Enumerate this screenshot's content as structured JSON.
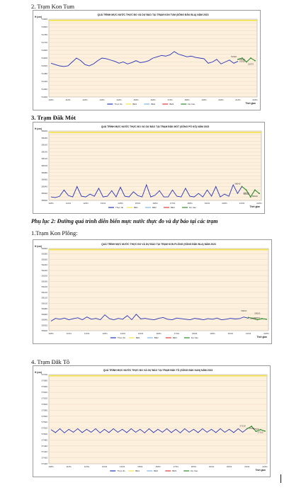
{
  "headings": {
    "kon_tum": "2. Trạm Kon Tum",
    "dak_mot": "3. Trạm Đăk Mót",
    "kon_plong": "1.Trạm Kon Plông:",
    "dak_to": "4. Trạm Đắk Tô"
  },
  "caption": "Phụ lục 2: Đường quá trình diễn biến mực nước thực đo và dự báo tại các trạm",
  "legend": {
    "observed": "Thực đo",
    "bd1": "BĐ1",
    "bd2": "BĐ2",
    "bd3": "BĐ3",
    "forecast": "Dự báo"
  },
  "colors": {
    "plot_bg": "#fdf0dd",
    "observed": "#2633b8",
    "forecast": "#2e8b2e",
    "bd1": "#f2e24a",
    "bd2": "#7fb6e6",
    "bd3": "#e03a3a",
    "grid": "#e3d3bd"
  },
  "chart_data": [
    {
      "type": "line",
      "title": "QUÁ TRÌNH MỰC NƯỚC THỰC ĐO VÀ DỰ BÁO TẠI TRẠM KON TUM (SÔNG ĐĂK BLA) NĂM 2023",
      "ylabel": "H (cm)",
      "xlabel": "Thời gian",
      "ylim": [
        51300,
        51900
      ],
      "yticks": [
        "51300",
        "51330",
        "51360",
        "51390",
        "51420",
        "51450",
        "51480",
        "51510",
        "51540",
        "51570",
        "51600",
        "51630",
        "51660",
        "51690",
        "51720",
        "51750",
        "51780",
        "51810",
        "51840",
        "51870",
        "51900"
      ],
      "xticks": [
        "10/01",
        "11/01",
        "12/01",
        "13/01",
        "14/01",
        "15/01",
        "16/01",
        "17/01",
        "18/01",
        "19/01",
        "20/01",
        "21/01",
        "22/01"
      ],
      "bd_line": 51890,
      "observed": [
        51560,
        51550,
        51540,
        51535,
        51540,
        51570,
        51600,
        51580,
        51550,
        51540,
        51555,
        51580,
        51600,
        51595,
        51585,
        51575,
        51560,
        51570,
        51555,
        51565,
        51580,
        51565,
        51570,
        51580,
        51600,
        51610,
        51620,
        51615,
        51625,
        51650,
        51630,
        51620,
        51610,
        51615,
        51605,
        51600,
        51595,
        51560,
        51570,
        51590,
        51555,
        51570,
        51585,
        51560,
        51575
      ],
      "forecast": [
        51590,
        51600,
        51570,
        51600,
        51580
      ],
      "labels": [
        {
          "text": "51590",
          "idx": 43
        },
        {
          "text": "51610",
          "idx": 45
        },
        {
          "text": "51555",
          "idx": 45
        },
        {
          "text": "51575",
          "idx": 47
        }
      ]
    },
    {
      "type": "line",
      "title": "QUÁ TRÌNH MỰC NƯỚC THỰC ĐO VÀ DỰ BÁO TẠI TRẠM ĐĂK MÓT (SÔNG PÔ KÔ) NĂM 2023",
      "ylabel": "H (cm)",
      "xlabel": "Thời gian",
      "ylim": [
        58000,
        58200
      ],
      "yticks": [
        "58000",
        "58010",
        "58020",
        "58030",
        "58040",
        "58050",
        "58060",
        "58070",
        "58080",
        "58090",
        "58100",
        "58110",
        "58120",
        "58130",
        "58140",
        "58150",
        "58160",
        "58170",
        "58180",
        "58190",
        "58200"
      ],
      "xticks": [
        "10/01",
        "11/01",
        "12/01",
        "13/01",
        "14/01",
        "15/01",
        "16/01",
        "17/01",
        "18/01",
        "19/01",
        "20/01",
        "21/01",
        "22/01"
      ],
      "bd_line": 58196,
      "observed": [
        58010,
        58008,
        58012,
        58030,
        58014,
        58010,
        58040,
        58012,
        58010,
        58018,
        58012,
        58035,
        58010,
        58012,
        58028,
        58010,
        58038,
        58012,
        58010,
        58025,
        58014,
        58010,
        58045,
        58010,
        58015,
        58028,
        58010,
        58010,
        58030,
        58012,
        58010,
        58035,
        58012,
        58010,
        58020,
        58010,
        58030,
        58012,
        58040,
        58010,
        58018,
        58012,
        58045,
        58020,
        58040
      ],
      "forecast": [
        58040,
        58030,
        58010,
        58030,
        58020
      ],
      "labels": [
        {
          "text": "58040",
          "idx": 43
        },
        {
          "text": "58030",
          "idx": 45
        },
        {
          "text": "58010",
          "idx": 45
        },
        {
          "text": "58020",
          "idx": 47
        }
      ]
    },
    {
      "type": "line",
      "title": "QUÁ TRÌNH MỰC NƯỚC THỰC ĐO VÀ DỰ BÁO TẠI TRẠM KON PLÔNG (SÔNG ĐĂK BLA) NĂM 2023",
      "ylabel": "H (cm)",
      "xlabel": "Thời gian",
      "ylim": [
        59000,
        59300
      ],
      "yticks": [
        "59000",
        "59020",
        "59040",
        "59060",
        "59080",
        "59100",
        "59120",
        "59140",
        "59160",
        "59180",
        "59200",
        "59220",
        "59240",
        "59260",
        "59280",
        "59300"
      ],
      "xticks": [
        "10/01",
        "11/01",
        "12/01",
        "13/01",
        "14/01",
        "15/01",
        "16/01",
        "17/01",
        "18/01",
        "19/01",
        "20/01",
        "21/01",
        "22/01"
      ],
      "bd_line": 59296,
      "observed": [
        59035,
        59045,
        59042,
        59046,
        59040,
        59044,
        59047,
        59040,
        59050,
        59042,
        59045,
        59040,
        59058,
        59044,
        59040,
        59045,
        59042,
        59055,
        59040,
        59060,
        59043,
        59045,
        59042,
        59040,
        59045,
        59048,
        59042,
        59040,
        59046,
        59044,
        59042,
        59040,
        59045,
        59043,
        59040,
        59044,
        59042,
        59046,
        59040,
        59042,
        59045,
        59043,
        59044,
        59050,
        59045
      ],
      "forecast": [
        59048,
        59045,
        59040,
        59044,
        59042
      ],
      "labels": [
        {
          "text": "59062",
          "idx": 43
        },
        {
          "text": "59057",
          "idx": 46
        },
        {
          "text": "59053",
          "idx": 46
        },
        {
          "text": "59055",
          "idx": 45
        }
      ]
    },
    {
      "type": "line",
      "title": "QUÁ TRÌNH MỰC NƯỚC THỰC ĐO VÀ DỰ BÁO TẠI TRẠM ĐẮK TÔ (SÔNG ĐẮK KAN) NĂM 2023",
      "ylabel": "H (cm)",
      "xlabel": "Thời gian",
      "ylim": [
        57400,
        57700
      ],
      "yticks": [
        "57400",
        "57420",
        "57440",
        "57460",
        "57480",
        "57500",
        "57520",
        "57540",
        "57560",
        "57580",
        "57600",
        "57620",
        "57640",
        "57660",
        "57680",
        "57700"
      ],
      "xticks": [
        "10/01",
        "11/01",
        "12/01",
        "13/01",
        "14/01",
        "15/01",
        "16/01",
        "17/01",
        "18/01",
        "19/01",
        "20/01",
        "21/01",
        "22/01"
      ],
      "bd_line": 57696,
      "observed": [
        57515,
        57505,
        57518,
        57504,
        57516,
        57506,
        57518,
        57505,
        57516,
        57506,
        57518,
        57504,
        57516,
        57505,
        57518,
        57506,
        57516,
        57505,
        57518,
        57506,
        57516,
        57504,
        57518,
        57505,
        57516,
        57506,
        57518,
        57505,
        57516,
        57504,
        57518,
        57506,
        57516,
        57505,
        57518,
        57506,
        57516,
        57505,
        57518,
        57506,
        57516,
        57505,
        57518,
        57506,
        57518
      ],
      "forecast": [
        57518,
        57526,
        57509,
        57515,
        57510
      ],
      "labels": [
        {
          "text": "57518",
          "idx": 43
        },
        {
          "text": "57526",
          "idx": 46
        },
        {
          "text": "57509",
          "idx": 45
        },
        {
          "text": "57515",
          "idx": 47
        }
      ]
    }
  ]
}
